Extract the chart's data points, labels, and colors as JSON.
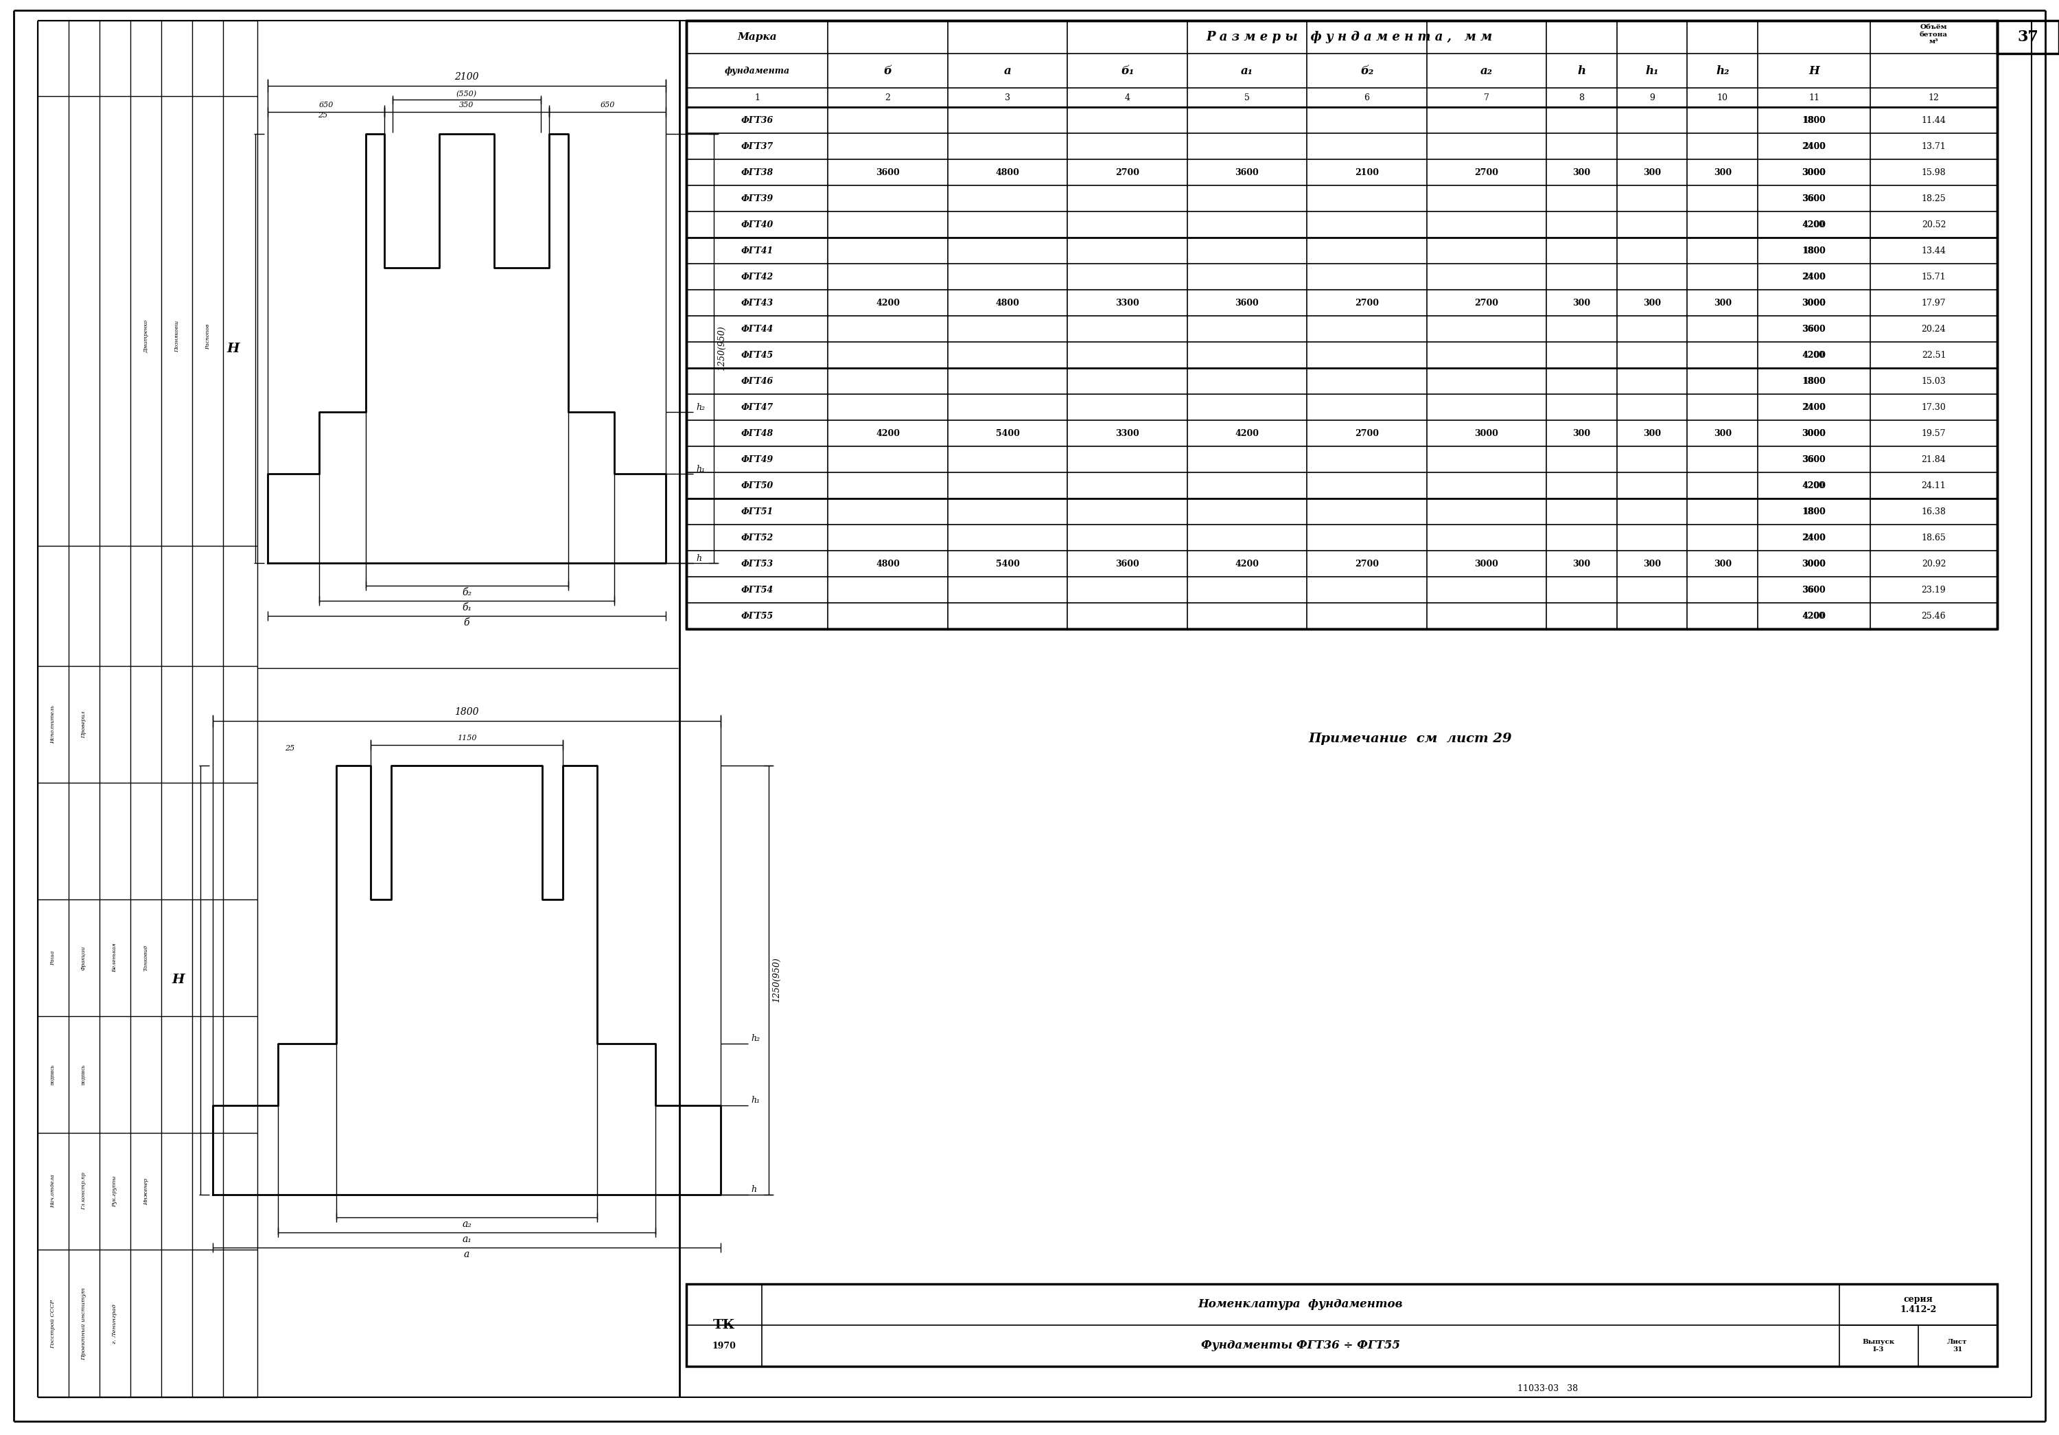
{
  "bg_color": "#ffffff",
  "line_color": "#000000",
  "rows": [
    [
      "ФГТ36",
      "",
      "",
      "",
      "",
      "",
      "",
      "",
      "",
      "",
      "1800",
      "11.44"
    ],
    [
      "ФГТ37",
      "",
      "",
      "",
      "",
      "",
      "",
      "",
      "",
      "",
      "2400",
      "13.71"
    ],
    [
      "ФГТ38",
      "3600",
      "4800",
      "2700",
      "3600",
      "2100",
      "2700",
      "300",
      "300",
      "300",
      "3000",
      "15.98"
    ],
    [
      "ФГТ39",
      "",
      "",
      "",
      "",
      "",
      "",
      "",
      "",
      "",
      "3600",
      "18.25"
    ],
    [
      "ФГТ40",
      "",
      "",
      "",
      "",
      "",
      "",
      "",
      "",
      "",
      "4200",
      "20.52"
    ],
    [
      "ФГТ41",
      "",
      "",
      "",
      "",
      "",
      "",
      "",
      "",
      "",
      "1800",
      "13.44"
    ],
    [
      "ФГТ42",
      "",
      "",
      "",
      "",
      "",
      "",
      "",
      "",
      "",
      "2400",
      "15.71"
    ],
    [
      "ФГТ43",
      "4200",
      "4800",
      "3300",
      "3600",
      "2700",
      "2700",
      "300",
      "300",
      "300",
      "3000",
      "17.97"
    ],
    [
      "ФГТ44",
      "",
      "",
      "",
      "",
      "",
      "",
      "",
      "",
      "",
      "3600",
      "20.24"
    ],
    [
      "ФГТ45",
      "",
      "",
      "",
      "",
      "",
      "",
      "",
      "",
      "",
      "4200",
      "22.51"
    ],
    [
      "ФГТ46",
      "",
      "",
      "",
      "",
      "",
      "",
      "",
      "",
      "",
      "1800",
      "15.03"
    ],
    [
      "ФГТ47",
      "",
      "",
      "",
      "",
      "",
      "",
      "",
      "",
      "",
      "2400",
      "17.30"
    ],
    [
      "ФГТ48",
      "4200",
      "5400",
      "3300",
      "4200",
      "2700",
      "3000",
      "300",
      "300",
      "300",
      "3000",
      "19.57"
    ],
    [
      "ФГТ49",
      "",
      "",
      "",
      "",
      "",
      "",
      "",
      "",
      "",
      "3600",
      "21.84"
    ],
    [
      "ФГТ50",
      "",
      "",
      "",
      "",
      "",
      "",
      "",
      "",
      "",
      "4200",
      "24.11"
    ],
    [
      "ФГТ51",
      "",
      "",
      "",
      "",
      "",
      "",
      "",
      "",
      "",
      "1800",
      "16.38"
    ],
    [
      "ФГТ52",
      "",
      "",
      "",
      "",
      "",
      "",
      "",
      "",
      "",
      "2400",
      "18.65"
    ],
    [
      "ФГТ53",
      "4800",
      "5400",
      "3600",
      "4200",
      "2700",
      "3000",
      "300",
      "300",
      "300",
      "3000",
      "20.92"
    ],
    [
      "ФГТ54",
      "",
      "",
      "",
      "",
      "",
      "",
      "",
      "",
      "",
      "3600",
      "23.19"
    ],
    [
      "ФГТ55",
      "",
      "",
      "",
      "",
      "",
      "",
      "",
      "",
      "",
      "4200",
      "25.46"
    ]
  ],
  "group_rows": [
    2,
    7,
    12,
    17
  ],
  "sub_cols_italic": [
    "б",
    "а",
    "б₁",
    "а₁",
    "б₂",
    "а₂",
    "h",
    "h₁",
    "h₂",
    "Н"
  ],
  "col_nums": [
    "1",
    "2",
    "3",
    "4",
    "5",
    "6",
    "7",
    "8",
    "9",
    "10",
    "11",
    "12"
  ],
  "note_text": "Примечание  см  лист 29",
  "doc_num": "11033-03   38",
  "page_num": "37",
  "series": "серия\n1.412-2",
  "fund_range": "Фундаменты ФГТзб ÷ ФГТ55",
  "nomenclature": "Номенклатура  фундаментов",
  "tk": "ТК",
  "year": "1970",
  "vypusk": "Выпуск\nI-3",
  "list_num": "Лист\n31",
  "left_strips": [
    "Госстрой СССР",
    "Проектный институт",
    "г. Ленинград"
  ],
  "right_strips": [
    "Раша",
    "Фракции",
    "Беленькая",
    "Тонковид"
  ],
  "sign_rows": [
    "Нач.отдела",
    "Гл.констр.пр",
    "Рук.группы",
    "Инженер"
  ],
  "left_rows2": [
    "Исполнитель",
    "Проверил"
  ]
}
